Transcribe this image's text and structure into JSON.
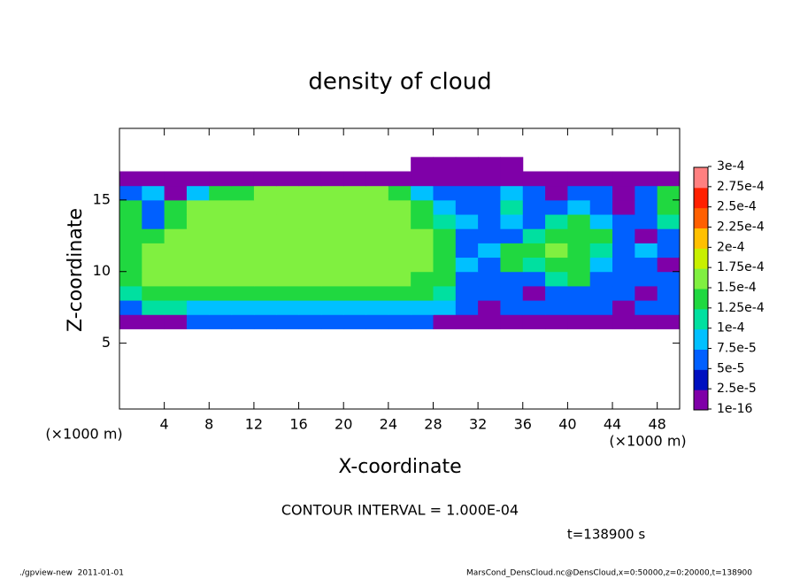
{
  "chart_data": {
    "type": "heatmap",
    "title": "density of cloud",
    "xlabel": "X-coordinate",
    "ylabel": "Z-coordinate",
    "x_unit": "(×1000 m)",
    "y_unit": "(×1000 m)",
    "xlim": [
      0,
      50
    ],
    "ylim": [
      0.4,
      20
    ],
    "xticks": [
      4,
      8,
      12,
      16,
      20,
      24,
      28,
      32,
      36,
      40,
      44,
      48
    ],
    "yticks": [
      5,
      10,
      15
    ],
    "x": [
      0,
      2,
      4,
      6,
      8,
      10,
      12,
      14,
      16,
      18,
      20,
      22,
      24,
      26,
      28,
      30,
      32,
      34,
      36,
      38,
      40,
      42,
      44,
      46,
      48,
      50
    ],
    "y": [
      6,
      7,
      8,
      9,
      10,
      11,
      12,
      13,
      14,
      15,
      16,
      17,
      18
    ],
    "values": [
      [
        1e-05,
        1e-05,
        1e-05,
        5.5e-05,
        5.5e-05,
        5.5e-05,
        5.5e-05,
        5.5e-05,
        5.5e-05,
        5.5e-05,
        5.5e-05,
        5.5e-05,
        5.5e-05,
        5.5e-05,
        1e-05,
        1e-05,
        1e-05,
        1e-05,
        1e-05,
        1e-05,
        1e-05,
        1e-05,
        1e-05,
        1e-05,
        1e-05
      ],
      [
        5.5e-05,
        0.00011,
        0.00011,
        8e-05,
        8e-05,
        8e-05,
        8e-05,
        8e-05,
        8e-05,
        8e-05,
        8e-05,
        8e-05,
        8e-05,
        8e-05,
        8e-05,
        5.5e-05,
        1e-05,
        5.5e-05,
        5.5e-05,
        5.5e-05,
        5.5e-05,
        5.5e-05,
        1e-05,
        5.5e-05,
        5.5e-05
      ],
      [
        0.00011,
        0.00014,
        0.00014,
        0.00014,
        0.00014,
        0.00014,
        0.00014,
        0.00014,
        0.00014,
        0.00014,
        0.00014,
        0.00014,
        0.00014,
        0.00014,
        0.00011,
        5.5e-05,
        5.5e-05,
        5.5e-05,
        1e-05,
        5.5e-05,
        5.5e-05,
        5.5e-05,
        5.5e-05,
        1e-05,
        5.5e-05
      ],
      [
        0.00014,
        0.00016,
        0.00016,
        0.00016,
        0.00016,
        0.00016,
        0.00016,
        0.00016,
        0.00016,
        0.00016,
        0.00016,
        0.00016,
        0.00016,
        0.00014,
        0.00014,
        5.5e-05,
        5.5e-05,
        5.5e-05,
        5.5e-05,
        0.00011,
        0.00014,
        5.5e-05,
        5.5e-05,
        5.5e-05,
        5.5e-05
      ],
      [
        0.00014,
        0.00016,
        0.00016,
        0.00016,
        0.00016,
        0.00016,
        0.00016,
        0.00016,
        0.00016,
        0.00016,
        0.00016,
        0.00016,
        0.00016,
        0.00016,
        0.00014,
        8e-05,
        5.5e-05,
        0.00014,
        0.00011,
        0.00014,
        0.00014,
        8e-05,
        5.5e-05,
        5.5e-05,
        1e-05
      ],
      [
        0.00014,
        0.00016,
        0.00016,
        0.00016,
        0.00016,
        0.00016,
        0.00016,
        0.00016,
        0.00016,
        0.00016,
        0.00016,
        0.00016,
        0.00016,
        0.00016,
        0.00014,
        5.5e-05,
        8e-05,
        0.00014,
        0.00014,
        0.00016,
        0.00014,
        0.00011,
        5.5e-05,
        8e-05,
        5.5e-05
      ],
      [
        0.00014,
        0.00014,
        0.00016,
        0.00016,
        0.00016,
        0.00016,
        0.00016,
        0.00016,
        0.00016,
        0.00016,
        0.00016,
        0.00016,
        0.00016,
        0.00016,
        0.00014,
        5.5e-05,
        5.5e-05,
        5.5e-05,
        0.00011,
        0.00014,
        0.00014,
        0.00014,
        5.5e-05,
        1e-05,
        5.5e-05
      ],
      [
        0.00014,
        5.5e-05,
        0.00014,
        0.00016,
        0.00016,
        0.00016,
        0.00016,
        0.00016,
        0.00016,
        0.00016,
        0.00016,
        0.00016,
        0.00016,
        0.00014,
        0.00011,
        8e-05,
        5.5e-05,
        8e-05,
        5.5e-05,
        0.00011,
        0.00014,
        8e-05,
        5.5e-05,
        5.5e-05,
        0.00011
      ],
      [
        0.00014,
        5.5e-05,
        0.00014,
        0.00016,
        0.00016,
        0.00016,
        0.00016,
        0.00016,
        0.00016,
        0.00016,
        0.00016,
        0.00016,
        0.00016,
        0.00014,
        8e-05,
        5.5e-05,
        5.5e-05,
        0.00011,
        5.5e-05,
        5.5e-05,
        8e-05,
        5.5e-05,
        1e-05,
        5.5e-05,
        0.00014
      ],
      [
        5.5e-05,
        8e-05,
        1e-05,
        8e-05,
        0.00014,
        0.00014,
        0.00016,
        0.00016,
        0.00016,
        0.00016,
        0.00016,
        0.00016,
        0.00014,
        8e-05,
        5.5e-05,
        5.5e-05,
        5.5e-05,
        8e-05,
        5.5e-05,
        1e-05,
        5.5e-05,
        5.5e-05,
        1e-05,
        5.5e-05,
        0.00014
      ],
      [
        1e-05,
        1e-05,
        1e-05,
        1e-05,
        1e-05,
        1e-05,
        1e-05,
        1e-05,
        1e-05,
        1e-05,
        1e-05,
        1e-05,
        1e-05,
        1e-05,
        1e-05,
        1e-05,
        1e-05,
        1e-05,
        1e-05,
        1e-05,
        1e-05,
        1e-05,
        1e-05,
        1e-05,
        1e-05
      ],
      [
        null,
        null,
        null,
        null,
        null,
        null,
        null,
        null,
        null,
        null,
        null,
        null,
        null,
        1e-05,
        1e-05,
        1e-05,
        1e-05,
        1e-05,
        null,
        null,
        null,
        null,
        null,
        null,
        null
      ]
    ],
    "levels": [
      {
        "value": 1e-16,
        "label": "1e-16"
      },
      {
        "value": 2.5e-05,
        "label": "2.5e-5"
      },
      {
        "value": 5e-05,
        "label": "5e-5"
      },
      {
        "value": 7.5e-05,
        "label": "7.5e-5"
      },
      {
        "value": 0.0001,
        "label": "1e-4"
      },
      {
        "value": 0.000125,
        "label": "1.25e-4"
      },
      {
        "value": 0.00015,
        "label": "1.5e-4"
      },
      {
        "value": 0.000175,
        "label": "1.75e-4"
      },
      {
        "value": 0.0002,
        "label": "2e-4"
      },
      {
        "value": 0.000225,
        "label": "2.25e-4"
      },
      {
        "value": 0.00025,
        "label": "2.5e-4"
      },
      {
        "value": 0.000275,
        "label": "2.75e-4"
      },
      {
        "value": 0.0003,
        "label": "3e-4"
      }
    ],
    "colors": [
      "#7f00a8",
      "#0010c0",
      "#0060ff",
      "#00c0ff",
      "#00e0a0",
      "#20d840",
      "#80f040",
      "#c8f000",
      "#ffc000",
      "#ff6000",
      "#ff2000",
      "#ff8080"
    ],
    "contour_note": "CONTOUR INTERVAL = 1.000E-04",
    "time_note": "t=138900 s",
    "footer_left": "./gpview-new  2011-01-01",
    "footer_right": "MarsCond_DensCloud.nc@DensCloud,x=0:50000,z=0:20000,t=138900"
  }
}
